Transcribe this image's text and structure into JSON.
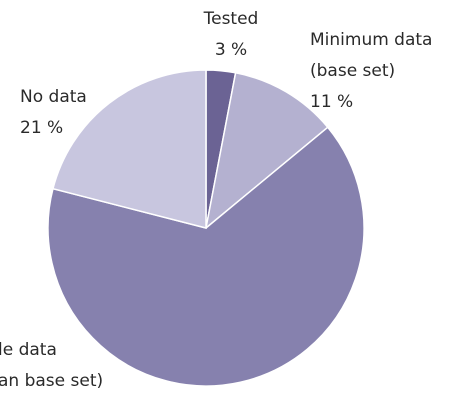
{
  "chart_data": {
    "type": "pie",
    "categories": [
      [
        "Tested"
      ],
      [
        "Minimum data",
        "(base set)"
      ],
      [
        "le data",
        "an base set)"
      ],
      [
        "No data"
      ]
    ],
    "values": [
      3,
      11,
      65,
      21
    ],
    "value_labels": [
      "3 %",
      "11 %",
      null,
      "21 %"
    ],
    "colors": [
      "#6b6394",
      "#b4b1d0",
      "#8681ae",
      "#c8c6df"
    ]
  }
}
